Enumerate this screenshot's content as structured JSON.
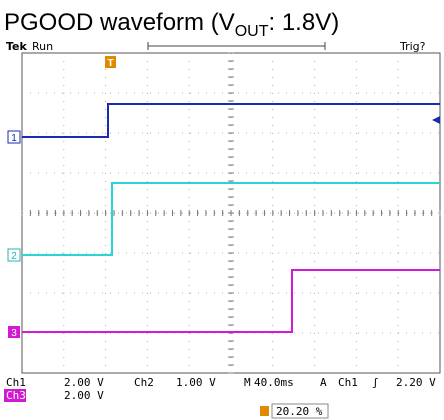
{
  "header": {
    "title_main": "PGOOD waveform (V",
    "title_sub": "OUT",
    "title_end": ": 1.8V)"
  },
  "scope": {
    "brand": "Tek",
    "status": "Run",
    "trigger_state": "Trig?",
    "channel_markers": [
      "1",
      "2",
      "3"
    ],
    "trigger_marker": "T"
  },
  "readouts": {
    "ch1": {
      "label": "Ch1",
      "scale": "2.00 V"
    },
    "ch2": {
      "label": "Ch2",
      "scale": "1.00 V"
    },
    "timebase": {
      "label": "M",
      "value": "40.0ms"
    },
    "trigger": {
      "mode": "A",
      "source": "Ch1",
      "slope": "ʃ",
      "level": "2.20 V"
    },
    "ch3": {
      "label": "Ch3",
      "scale": "2.00 V"
    },
    "position": "20.20 %"
  }
}
